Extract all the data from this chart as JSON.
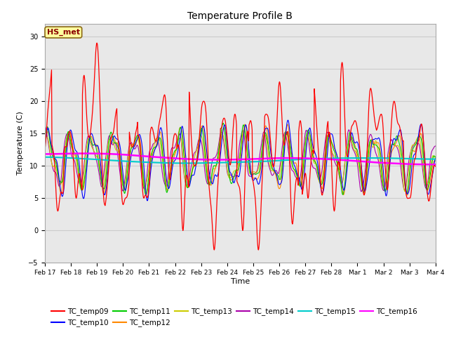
{
  "title": "Temperature Profile B",
  "xlabel": "Time",
  "ylabel": "Temperature (C)",
  "ylim": [
    -5,
    32
  ],
  "yticks": [
    -5,
    0,
    5,
    10,
    15,
    20,
    25,
    30
  ],
  "annotation_text": "HS_met",
  "annotation_color": "#8B0000",
  "annotation_bg": "#FFFFA0",
  "annotation_border": "#8B6914",
  "series_colors": {
    "TC_temp09": "#FF0000",
    "TC_temp10": "#0000FF",
    "TC_temp11": "#00CC00",
    "TC_temp12": "#FF8800",
    "TC_temp13": "#CCCC00",
    "TC_temp14": "#AA00AA",
    "TC_temp15": "#00CCCC",
    "TC_temp16": "#FF00FF"
  },
  "grid_color": "#CCCCCC",
  "bg_color": "#E8E8E8",
  "x_tick_labels": [
    "Feb 17",
    "Feb 18",
    "Feb 19",
    "Feb 20",
    "Feb 21",
    "Feb 22",
    "Feb 23",
    "Feb 24",
    "Feb 25",
    "Feb 26",
    "Feb 27",
    "Feb 28",
    "Mar 1",
    "Mar 2",
    "Mar 3",
    "Mar 4"
  ],
  "n_points": 1000
}
